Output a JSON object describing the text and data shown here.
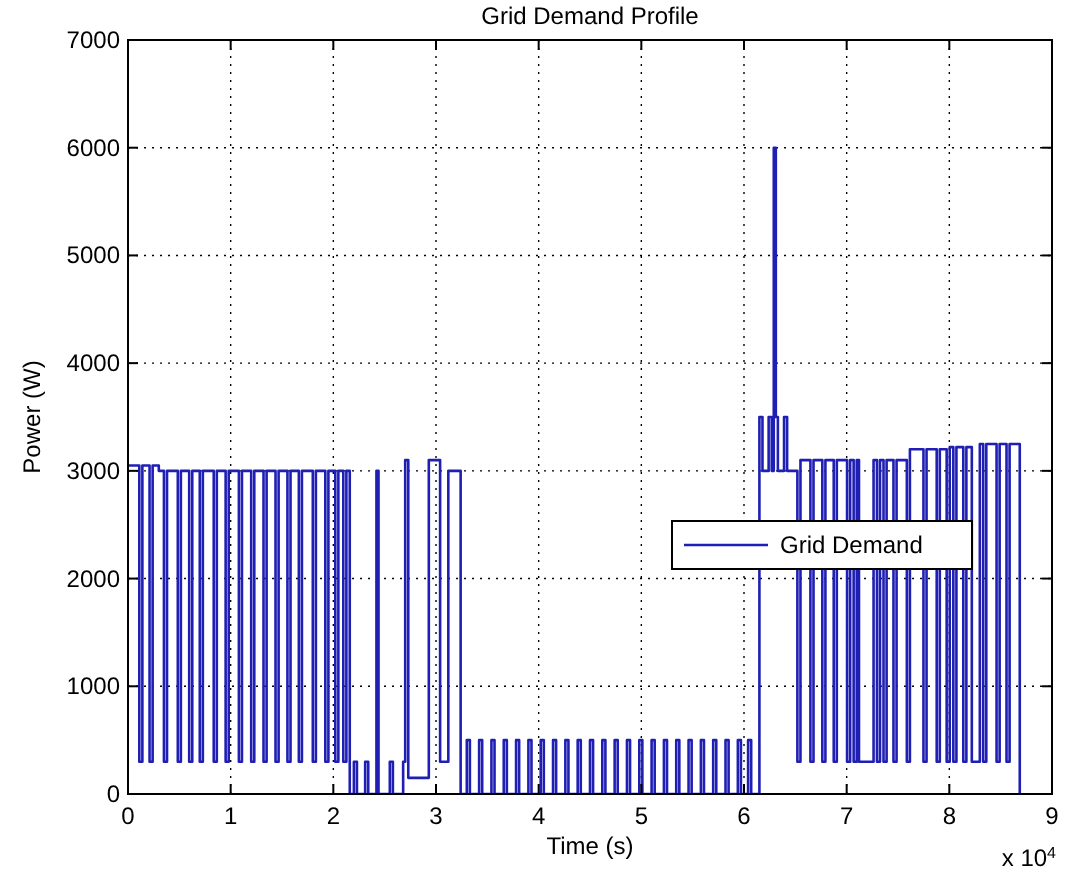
{
  "chart_data": {
    "type": "step",
    "title": "Grid Demand Profile",
    "xlabel": "Time (s)",
    "ylabel": "Power (W)",
    "annotations": [
      "x 10$^{4}$"
    ],
    "xlim": [
      0,
      9
    ],
    "xticks": [
      0,
      1,
      2,
      3,
      4,
      5,
      6,
      7,
      8,
      9
    ],
    "ylim": [
      0,
      7000
    ],
    "yticks": [
      0,
      1000,
      2000,
      3000,
      4000,
      5000,
      6000,
      7000
    ],
    "grid": true,
    "legend": "right",
    "line_style": "solid",
    "series": [
      {
        "name": "Grid Demand",
        "color": "#1f1fb4",
        "x": [
          0,
          0.11,
          0.14,
          0.21,
          0.24,
          0.3,
          0.35,
          0.38,
          0.485,
          0.515,
          0.596,
          0.626,
          0.699,
          0.729,
          0.835,
          0.865,
          0.951,
          0.981,
          1.08,
          1.11,
          1.2,
          1.23,
          1.32,
          1.35,
          1.437,
          1.467,
          1.553,
          1.583,
          1.664,
          1.694,
          1.8,
          1.83,
          1.922,
          1.952,
          2.019,
          2.049,
          2.097,
          2.127,
          2.16,
          2.2,
          2.23,
          2.31,
          2.34,
          2.42,
          2.44,
          2.55,
          2.58,
          2.68,
          2.7,
          2.73,
          2.93,
          3.04,
          3.12,
          3.24,
          3.3,
          3.33,
          3.42,
          3.45,
          3.54,
          3.57,
          3.66,
          3.69,
          3.78,
          3.81,
          3.9,
          3.93,
          4.02,
          4.05,
          4.14,
          4.17,
          4.26,
          4.29,
          4.38,
          4.41,
          4.5,
          4.53,
          4.62,
          4.65,
          4.74,
          4.77,
          4.86,
          4.89,
          4.98,
          5.01,
          5.1,
          5.13,
          5.22,
          5.25,
          5.34,
          5.37,
          5.46,
          5.49,
          5.58,
          5.61,
          5.7,
          5.73,
          5.82,
          5.85,
          5.94,
          5.97,
          6.04,
          6.07,
          6.15,
          6.18,
          6.24,
          6.27,
          6.29,
          6.31,
          6.33,
          6.39,
          6.42,
          6.52,
          6.55,
          6.647,
          6.677,
          6.763,
          6.793,
          6.874,
          6.904,
          7.004,
          7.034,
          7.068,
          7.098,
          7.12,
          7.262,
          7.295,
          7.325,
          7.359,
          7.389,
          7.456,
          7.486,
          7.586,
          7.616,
          7.748,
          7.778,
          7.877,
          7.907,
          7.974,
          8.004,
          8.039,
          8.069,
          8.136,
          8.166,
          8.219,
          8.297,
          8.33,
          8.36,
          8.46,
          8.49,
          8.557,
          8.587,
          8.686
        ],
        "values": [
          3050,
          300,
          3050,
          300,
          3050,
          3000,
          300,
          3000,
          300,
          3000,
          300,
          3000,
          300,
          3000,
          300,
          3000,
          300,
          3000,
          300,
          3000,
          300,
          3000,
          300,
          3000,
          300,
          3000,
          300,
          3000,
          300,
          3000,
          300,
          3000,
          300,
          3000,
          300,
          3000,
          300,
          3000,
          0,
          300,
          0,
          300,
          0,
          3000,
          0,
          300,
          0,
          300,
          3100,
          150,
          3100,
          300,
          3000,
          0,
          500,
          0,
          500,
          0,
          500,
          0,
          500,
          0,
          500,
          0,
          500,
          0,
          500,
          0,
          500,
          0,
          500,
          0,
          500,
          0,
          500,
          0,
          500,
          0,
          500,
          0,
          500,
          0,
          500,
          0,
          500,
          0,
          500,
          0,
          500,
          0,
          500,
          0,
          500,
          0,
          500,
          0,
          500,
          0,
          500,
          0,
          500,
          0,
          3500,
          3000,
          3500,
          3000,
          6000,
          3500,
          3000,
          3500,
          3000,
          300,
          3100,
          300,
          3100,
          300,
          3100,
          300,
          3100,
          300,
          3100,
          300,
          3100,
          300,
          3100,
          300,
          3100,
          300,
          3100,
          300,
          3100,
          300,
          3200,
          300,
          3200,
          300,
          3200,
          300,
          3220,
          300,
          3220,
          300,
          3220,
          300,
          3250,
          300,
          3250,
          300,
          3250,
          300,
          3250,
          0
        ]
      }
    ]
  }
}
